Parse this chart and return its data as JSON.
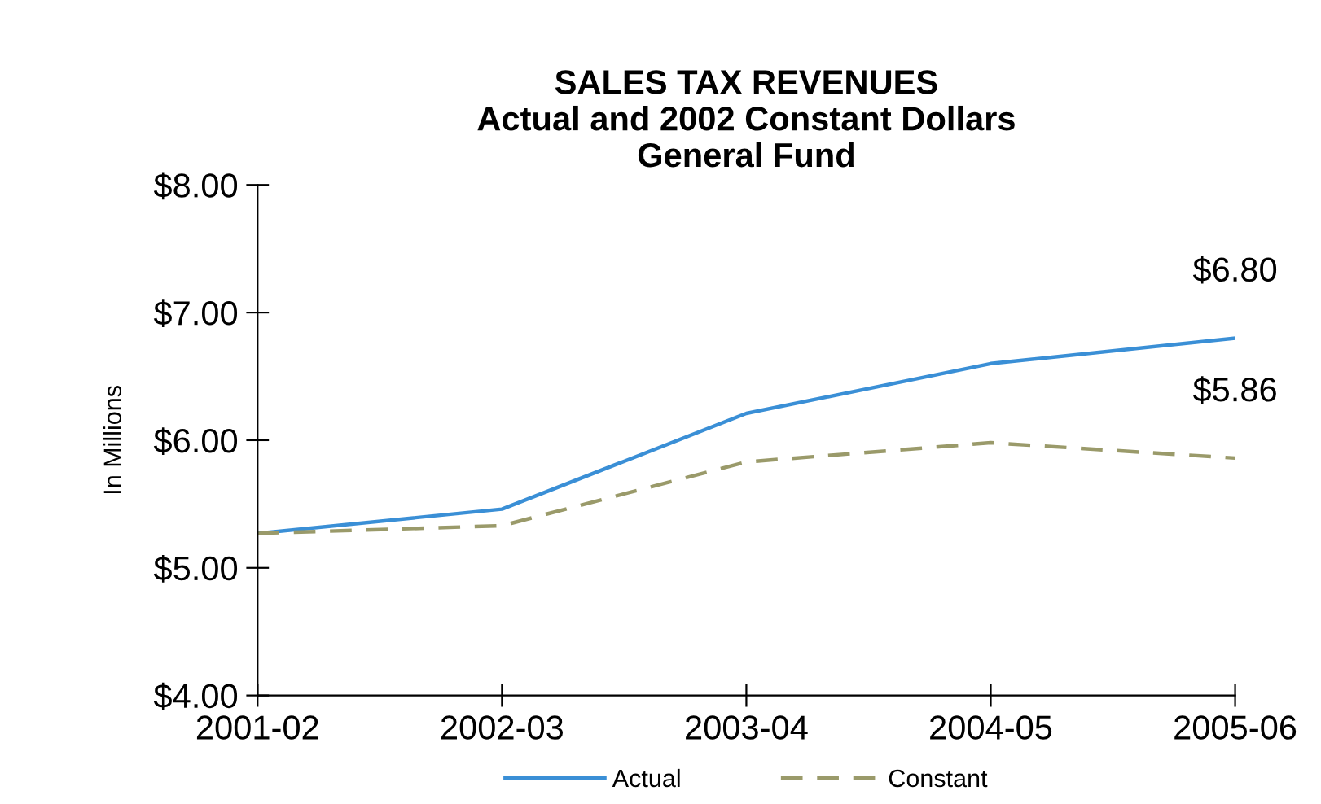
{
  "chart_data": {
    "type": "line",
    "title": "SALES TAX REVENUES\nActual and 2002 Constant Dollars\nGeneral Fund",
    "ylabel": "In Millions",
    "categories": [
      "2001-02",
      "2002-03",
      "2003-04",
      "2004-05",
      "2005-06"
    ],
    "series": [
      {
        "name": "Actual",
        "color": "#3a8fd6",
        "line_style": "solid",
        "values": [
          5.27,
          5.46,
          6.21,
          6.6,
          6.8
        ],
        "value_labels": [
          null,
          null,
          null,
          null,
          "$6.80"
        ]
      },
      {
        "name": "Constant",
        "color": "#9a9a6a",
        "line_style": "dashed",
        "values": [
          5.27,
          5.33,
          5.83,
          5.98,
          5.86
        ],
        "value_labels": [
          null,
          null,
          null,
          null,
          "$5.86"
        ]
      }
    ],
    "ylim": [
      4,
      8
    ],
    "yticks": [
      {
        "value": 4,
        "label": "$4.00"
      },
      {
        "value": 5,
        "label": "$5.00"
      },
      {
        "value": 6,
        "label": "$6.00"
      },
      {
        "value": 7,
        "label": "$7.00"
      },
      {
        "value": 8,
        "label": "$8.00"
      }
    ],
    "grid": false,
    "legend": "bottom",
    "marker": "none"
  }
}
